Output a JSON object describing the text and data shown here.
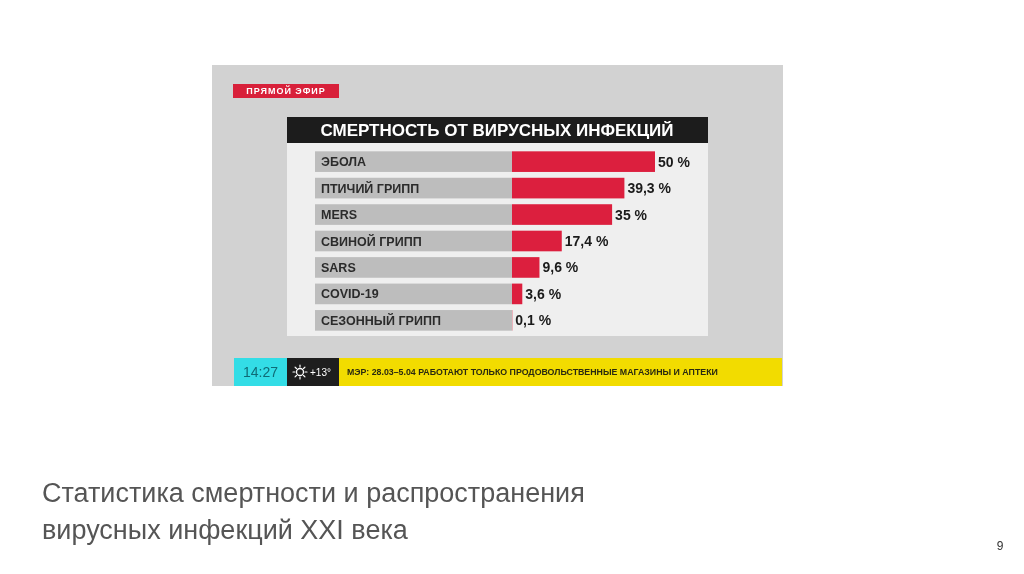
{
  "chart_data": {
    "type": "bar",
    "orientation": "horizontal",
    "title": "СМЕРТНОСТЬ ОТ ВИРУСНЫХ ИНФЕКЦИЙ",
    "categories": [
      "ЭБОЛА",
      "ПТИЧИЙ ГРИПП",
      "MERS",
      "СВИНОЙ ГРИПП",
      "SARS",
      "COVID-19",
      "СЕЗОННЫЙ ГРИПП"
    ],
    "values": [
      50,
      39.3,
      35,
      17.4,
      9.6,
      3.6,
      0.1
    ],
    "color": "#dc1f3e",
    "value_labels": [
      "50 %",
      "39,3 %",
      "35 %",
      "17,4 %",
      "9,6 %",
      "3,6 %",
      "0,1 %"
    ],
    "tick_labels": "y",
    "annotations": [
      "ПРЯМОЙ ЭФИР",
      "14:27",
      "+13°",
      "МЭР: 28.03–5.04 РАБОТАЮТ ТОЛЬКО ПРОДОВОЛЬСТВЕННЫЕ МАГАЗИНЫ И АПТЕКИ",
      "Статистика смертности и распространения вирусных инфекций XXI века",
      "9"
    ]
  }
}
